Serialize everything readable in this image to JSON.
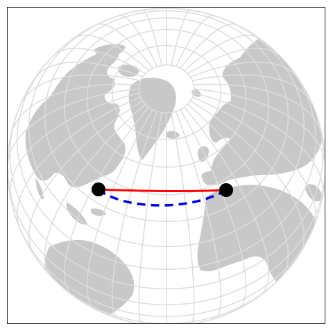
{
  "map": {
    "projection": "orthographic",
    "center": {
      "lat": 60,
      "lon": -40
    },
    "colors": {
      "background": "#ffffff",
      "land": "#c8c8c8",
      "graticule": "#dddddd",
      "frame": "#222222",
      "rhumb_line": "#ff0000",
      "great_circle": "#0000dd",
      "endpoint": "#000000"
    },
    "endpoints": [
      {
        "name": "west-endpoint",
        "lat": 31,
        "lon": -81
      },
      {
        "name": "east-endpoint",
        "lat": 31,
        "lon": 4
      }
    ],
    "routes": [
      {
        "name": "rhumb-line",
        "style": "solid",
        "color_key": "rhumb_line"
      },
      {
        "name": "great-circle-route",
        "style": "dashed",
        "color_key": "great_circle"
      }
    ],
    "graticule_spacing_deg": 10
  }
}
